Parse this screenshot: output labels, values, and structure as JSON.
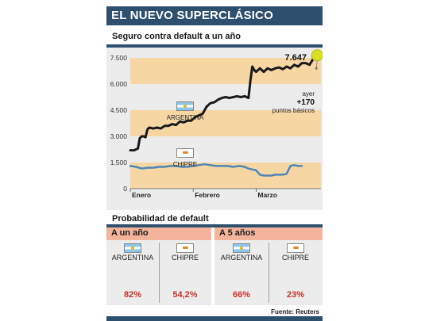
{
  "header": {
    "title": "EL NUEVO SUPERCLÁSICO"
  },
  "section1": {
    "title": "Seguro contra default a un año"
  },
  "section2": {
    "title": "Probabilidad de default"
  },
  "panes": [
    {
      "title": "A un año"
    },
    {
      "title": "A 5 años"
    }
  ],
  "source": "Fuente: Reuters",
  "colors": {
    "navy": "#2e4f6e",
    "band": "#f6d7a4",
    "pie_red": "#d12e2a",
    "pie_grey": "#c8c8c8",
    "line_ar": "#1a1a1a",
    "line_cy": "#4e86b8",
    "highlight": "#d9e021"
  },
  "chart_data": [
    {
      "type": "line",
      "title": "Seguro contra default a un año",
      "xlabel": "",
      "ylabel": "",
      "ylim": [
        0,
        8000
      ],
      "yticks": [
        0,
        1500,
        3000,
        4500,
        6000,
        7500
      ],
      "ytick_labels": [
        "0",
        "1.500",
        "3.000",
        "4.500",
        "6.000",
        "7.500"
      ],
      "xtick_labels": [
        "Enero",
        "Febrero",
        "Marzo"
      ],
      "xlim": [
        0,
        100
      ],
      "xticks": [
        0,
        33,
        66
      ],
      "grid": false,
      "series": [
        {
          "name": "ARGENTINA",
          "x": [
            0,
            1,
            2,
            3,
            4,
            5,
            6,
            7,
            8,
            9,
            10,
            12,
            14,
            16,
            18,
            20,
            22,
            24,
            26,
            28,
            30,
            32,
            34,
            36,
            38,
            40,
            42,
            44,
            46,
            48,
            50,
            52,
            54,
            56,
            58,
            60,
            62,
            63,
            64,
            65,
            66,
            68,
            70,
            72,
            74,
            76,
            78,
            80,
            82,
            84,
            86,
            88,
            90,
            92,
            94,
            96,
            98
          ],
          "y": [
            2200,
            2200,
            2200,
            2250,
            2300,
            2900,
            3000,
            3000,
            2950,
            3400,
            3500,
            3450,
            3500,
            3450,
            3600,
            3600,
            3700,
            3650,
            3850,
            3800,
            3900,
            3900,
            4100,
            4200,
            4300,
            4700,
            4900,
            4950,
            5100,
            5200,
            5250,
            5200,
            5250,
            5300,
            5250,
            5300,
            5200,
            6200,
            7000,
            6800,
            6700,
            6900,
            6700,
            6900,
            6800,
            6900,
            6950,
            6850,
            7000,
            6900,
            7100,
            7000,
            7200,
            7200,
            7100,
            7450,
            7647
          ]
        },
        {
          "name": "CHIPRE",
          "x": [
            0,
            3,
            6,
            9,
            12,
            15,
            18,
            21,
            24,
            27,
            30,
            33,
            36,
            39,
            42,
            45,
            48,
            51,
            54,
            57,
            60,
            62,
            64,
            66,
            68,
            70,
            72,
            74,
            76,
            78,
            80,
            82,
            84,
            86,
            88,
            90
          ],
          "y": [
            1300,
            1250,
            1150,
            1200,
            1200,
            1250,
            1250,
            1300,
            1300,
            1250,
            1250,
            1300,
            1350,
            1400,
            1350,
            1300,
            1300,
            1300,
            1250,
            1300,
            1250,
            1150,
            1100,
            1050,
            800,
            750,
            750,
            750,
            800,
            800,
            800,
            850,
            1300,
            1350,
            1300,
            1300
          ]
        }
      ],
      "annotations": [
        {
          "text": "7.647",
          "x": 98,
          "y": 7647
        },
        {
          "text": "ayer",
          "x": 98,
          "y": 7000
        },
        {
          "text": "+170",
          "x": 98,
          "y": 7000
        },
        {
          "text": "puntos básicos",
          "x": 98,
          "y": 7000
        }
      ],
      "highlight_bands": [
        [
          7500,
          6000
        ],
        [
          4500,
          3000
        ],
        [
          1500,
          0
        ]
      ]
    },
    {
      "type": "pie",
      "title": "Probabilidad de default",
      "series": [
        {
          "name": "A un año",
          "values": [
            {
              "label": "ARGENTINA",
              "value": 82,
              "display": "82%"
            },
            {
              "label": "CHIPRE",
              "value": 54.2,
              "display": "54,2%"
            }
          ]
        },
        {
          "name": "A 5 años",
          "values": [
            {
              "label": "ARGENTINA",
              "value": 66,
              "display": "66%"
            },
            {
              "label": "CHIPRE",
              "value": 23,
              "display": "23%"
            }
          ]
        }
      ]
    }
  ]
}
